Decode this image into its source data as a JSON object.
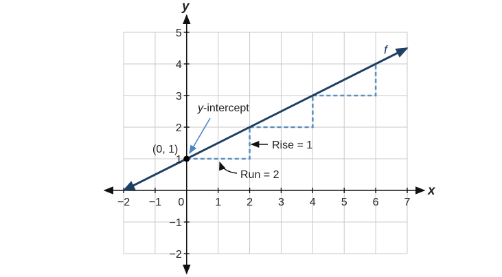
{
  "chart_data": {
    "type": "line",
    "xlabel": "x",
    "ylabel": "y",
    "xlim": [
      -2,
      7
    ],
    "ylim": [
      -2,
      5
    ],
    "x_ticks": [
      "−2",
      "−1",
      "0",
      "1",
      "2",
      "3",
      "4",
      "5",
      "6",
      "7"
    ],
    "x_tick_values": [
      -2,
      -1,
      0,
      1,
      2,
      3,
      4,
      5,
      6,
      7
    ],
    "y_ticks": [
      "5",
      "4",
      "3",
      "2",
      "1",
      "−1",
      "−2"
    ],
    "y_tick_values": [
      5,
      4,
      3,
      2,
      1,
      -1,
      -2
    ],
    "grid": true,
    "series": [
      {
        "name": "f",
        "x": [
          -2,
          7
        ],
        "y": [
          0,
          4.5
        ],
        "color": "#1f3f63"
      }
    ],
    "steps": [
      {
        "x": [
          0,
          2,
          2
        ],
        "y": [
          1,
          1,
          2
        ]
      },
      {
        "x": [
          2,
          4,
          4
        ],
        "y": [
          2,
          2,
          3
        ]
      },
      {
        "x": [
          4,
          6,
          6
        ],
        "y": [
          3,
          3,
          4
        ]
      }
    ],
    "step_color": "#5b8fc0",
    "point": {
      "x": 0,
      "y": 1,
      "label": "(0, 1)"
    },
    "annotations": {
      "y_intercept": {
        "italic": "y",
        "rest": "-intercept"
      },
      "rise": "Rise = 1",
      "run": "Run = 2"
    }
  }
}
